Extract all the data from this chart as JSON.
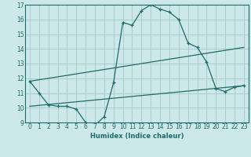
{
  "xlabel": "Humidex (Indice chaleur)",
  "ylabel": "",
  "xlim": [
    -0.5,
    23.5
  ],
  "ylim": [
    9,
    17
  ],
  "yticks": [
    9,
    10,
    11,
    12,
    13,
    14,
    15,
    16,
    17
  ],
  "xticks": [
    0,
    1,
    2,
    3,
    4,
    5,
    6,
    7,
    8,
    9,
    10,
    11,
    12,
    13,
    14,
    15,
    16,
    17,
    18,
    19,
    20,
    21,
    22,
    23
  ],
  "bg_color": "#cce8e8",
  "line_color": "#1e6b6b",
  "grid_color": "#aacccc",
  "curve1_x": [
    0,
    1,
    2,
    3,
    4,
    5,
    6,
    7,
    8,
    9,
    10,
    11,
    12,
    13,
    14,
    15,
    16,
    17,
    18,
    19,
    20,
    21,
    22,
    23
  ],
  "curve1_y": [
    11.8,
    11.0,
    10.2,
    10.1,
    10.1,
    9.9,
    9.0,
    8.8,
    9.4,
    11.7,
    15.8,
    15.6,
    16.6,
    17.0,
    16.7,
    16.5,
    16.0,
    14.4,
    14.1,
    13.1,
    11.3,
    11.1,
    11.4,
    11.5
  ],
  "curve2_x": [
    0,
    23
  ],
  "curve2_y": [
    11.8,
    14.1
  ],
  "curve3_x": [
    0,
    23
  ],
  "curve3_y": [
    10.1,
    11.5
  ]
}
